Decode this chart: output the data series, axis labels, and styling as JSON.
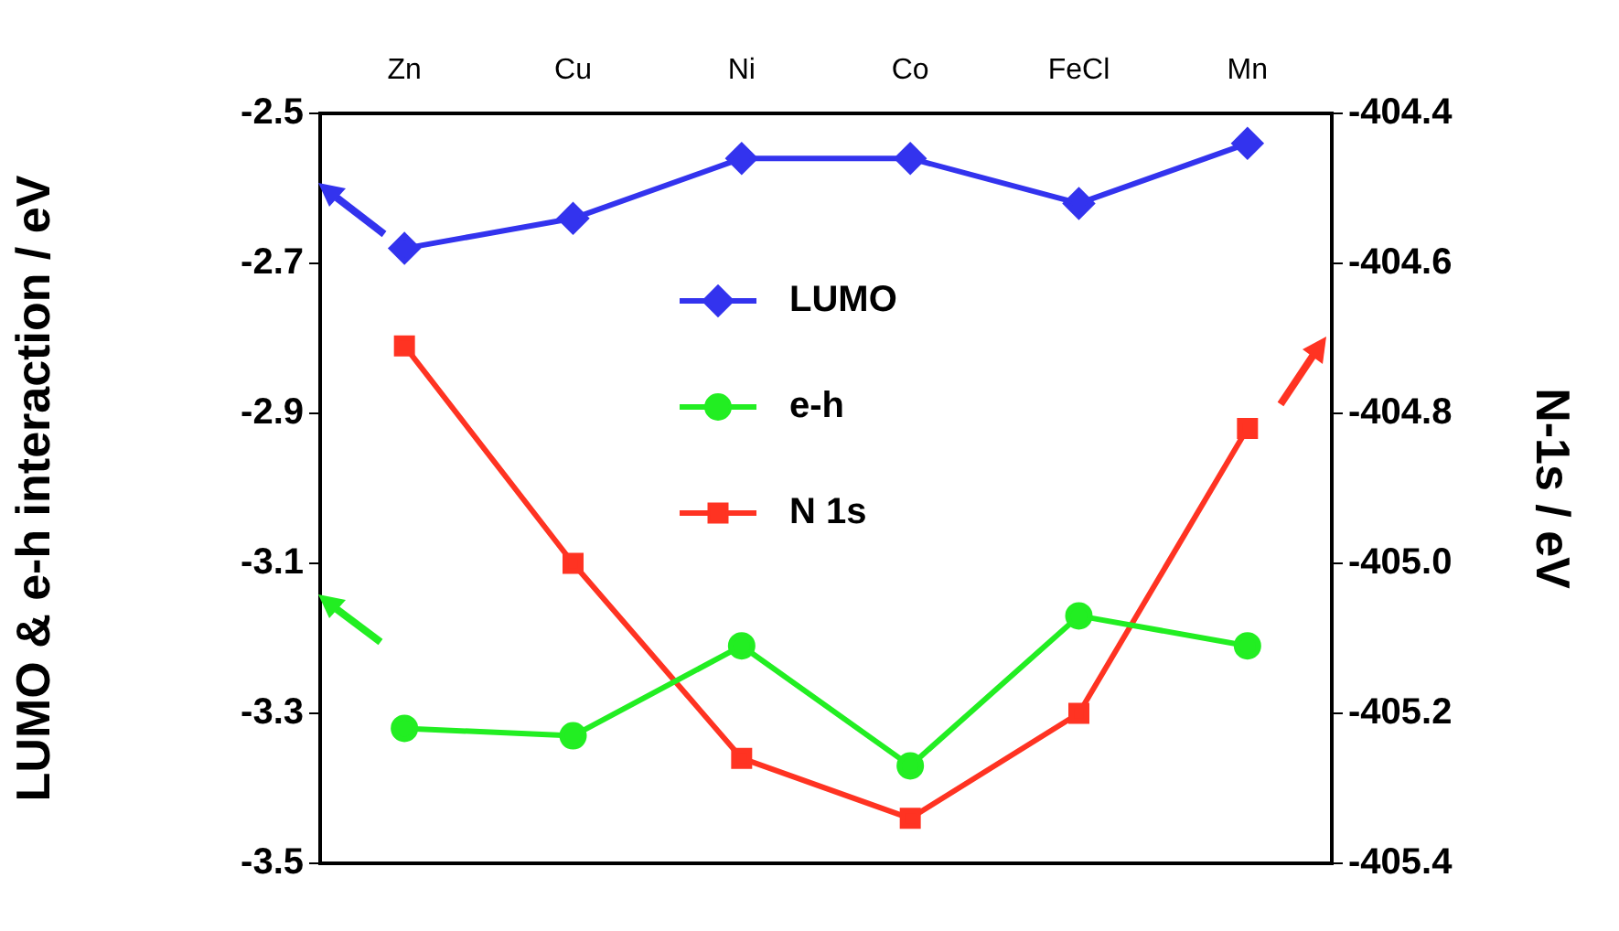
{
  "chart_data": {
    "type": "line",
    "categories": [
      "Zn",
      "Cu",
      "Ni",
      "Co",
      "FeCl",
      "Mn"
    ],
    "ylabel": "LUMO & e-h interaction / eV",
    "y2label": "N-1s / eV",
    "ylim": [
      -3.5,
      -2.5
    ],
    "yticks": [
      -3.5,
      -3.3,
      -3.1,
      -2.9,
      -2.7,
      -2.5
    ],
    "y2lim": [
      -405.4,
      -404.4
    ],
    "y2ticks": [
      -405.4,
      -405.2,
      {
        "value": -405.0,
        "label": "-405.0"
      },
      -404.8,
      -404.6,
      -404.4
    ],
    "grid": false,
    "legend": "top",
    "line_style": "solid",
    "series": [
      {
        "name": "LUMO",
        "color": "#3333ee",
        "marker": "diamond",
        "values": [
          -2.68,
          -2.64,
          -2.56,
          -2.56,
          -2.62,
          -2.54
        ]
      },
      {
        "name": "e-h",
        "color": "#22ee22",
        "marker": "circle",
        "values": [
          -3.32,
          -3.33,
          -3.21,
          -3.37,
          -3.17,
          -3.21
        ]
      },
      {
        "name": "N 1s",
        "color": "#ff3322",
        "marker": "square",
        "axis": "y2",
        "values": [
          -404.71,
          -405.0,
          -405.26,
          -405.34,
          -405.2,
          -404.82
        ]
      }
    ]
  }
}
